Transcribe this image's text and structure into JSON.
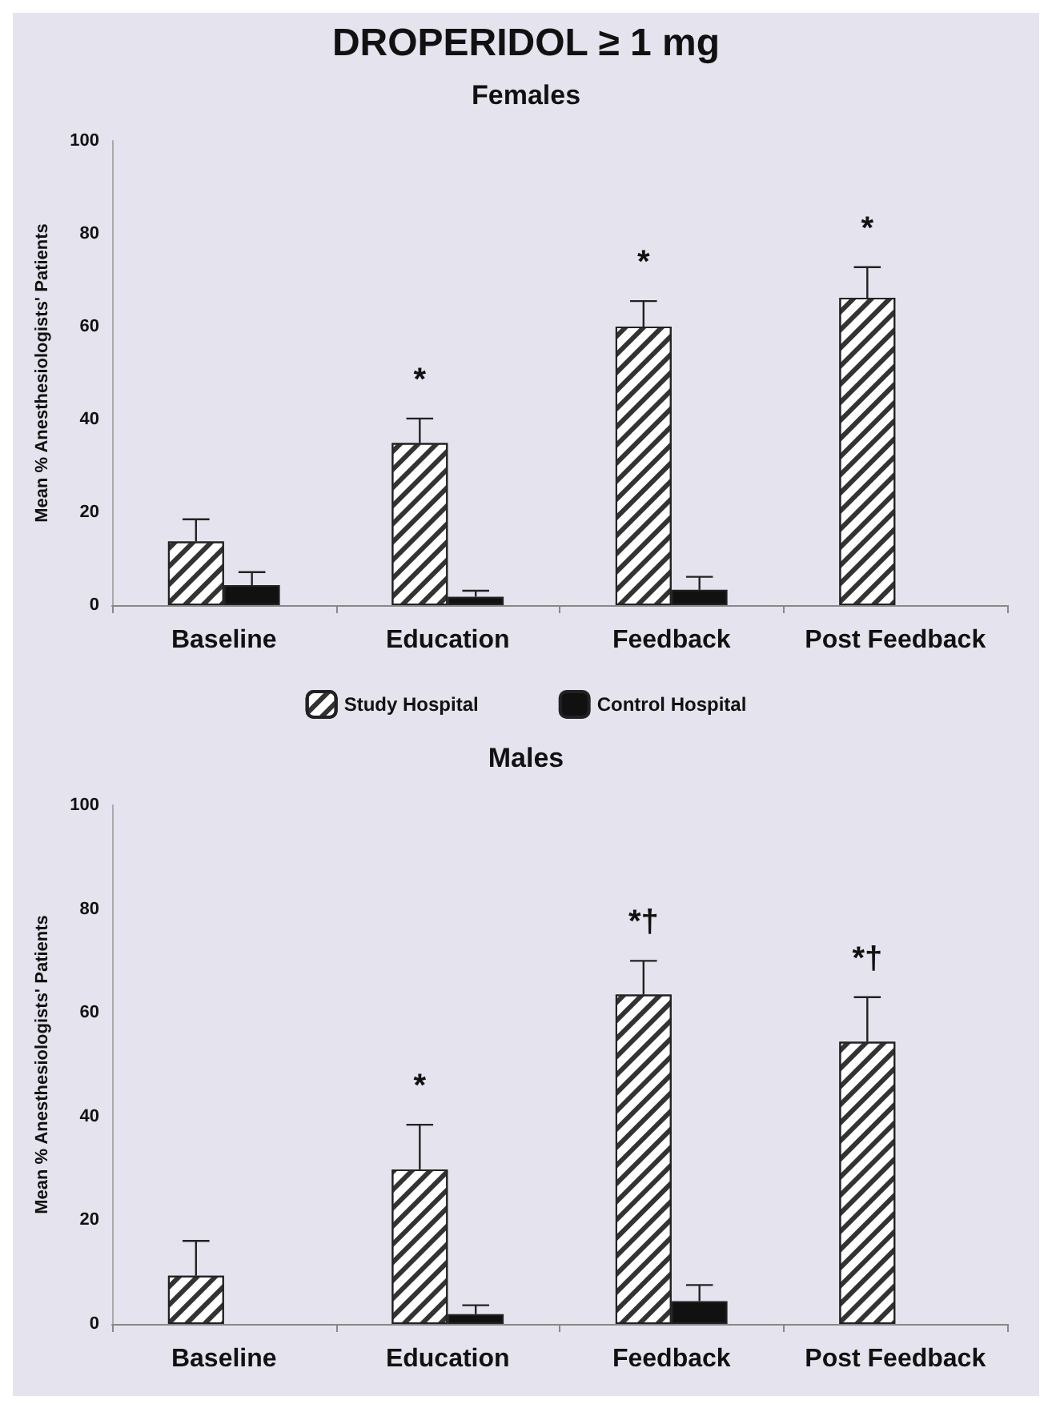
{
  "chart_data": [
    {
      "type": "bar",
      "title": "DROPERIDOL ≥ 1 mg",
      "subtitle": "Females",
      "ylabel": "Mean % Anesthesiologists' Patients",
      "categories": [
        "Baseline",
        "Education",
        "Feedback",
        "Post Feedback"
      ],
      "ylim": [
        0,
        100
      ],
      "yticks": [
        0,
        20,
        40,
        60,
        80,
        100
      ],
      "grid": false,
      "legend": "bottom",
      "series": [
        {
          "name": "Study Hospital",
          "color": "#ffffff",
          "values": [
            13.7,
            34.9,
            60,
            66.2
          ],
          "errors": [
            [
              13.7,
              18.5
            ],
            [
              34.9,
              40.2
            ],
            [
              60,
              65.5
            ],
            [
              66.2,
              72.8
            ]
          ]
        },
        {
          "name": "Control Hospital",
          "color": "#111111",
          "values": [
            4.3,
            1.8,
            3.3,
            null
          ],
          "errors": [
            [
              4.3,
              7.1
            ],
            [
              1.8,
              3.1
            ],
            [
              3.3,
              6.1
            ],
            null
          ]
        }
      ],
      "annotations": [
        {
          "text": "*",
          "x": "Education",
          "y": 34.9
        },
        {
          "text": "*",
          "x": "Feedback",
          "y": 60
        },
        {
          "text": "*",
          "x": "Post Feedback",
          "y": 66.2
        }
      ]
    },
    {
      "type": "bar",
      "title": "Males",
      "ylabel": "Mean % Anesthesiologists' Patients",
      "categories": [
        "Baseline",
        "Education",
        "Feedback",
        "Post Feedback"
      ],
      "ylim": [
        0,
        100
      ],
      "yticks": [
        0,
        20,
        40,
        60,
        80,
        100
      ],
      "grid": false,
      "legend": false,
      "series": [
        {
          "color": "#ffffff",
          "values": [
            9.3,
            29.8,
            63.5,
            54.4
          ],
          "errors": [
            [
              9.3,
              16
            ],
            [
              29.8,
              38.4
            ],
            [
              63.5,
              70
            ],
            [
              54.4,
              63
            ]
          ]
        },
        {
          "color": "#111111",
          "values": [
            null,
            1.9,
            4.4,
            null
          ],
          "errors": [
            null,
            [
              1.9,
              3.6
            ],
            [
              4.4,
              7.5
            ],
            null
          ]
        }
      ],
      "annotations": [
        {
          "text": "*",
          "x": "Education",
          "y": 29.8
        },
        {
          "text": "*†",
          "x": "Feedback",
          "y": 63.5
        },
        {
          "text": "*†",
          "x": "Post Feedback",
          "y": 54.4
        }
      ]
    }
  ]
}
